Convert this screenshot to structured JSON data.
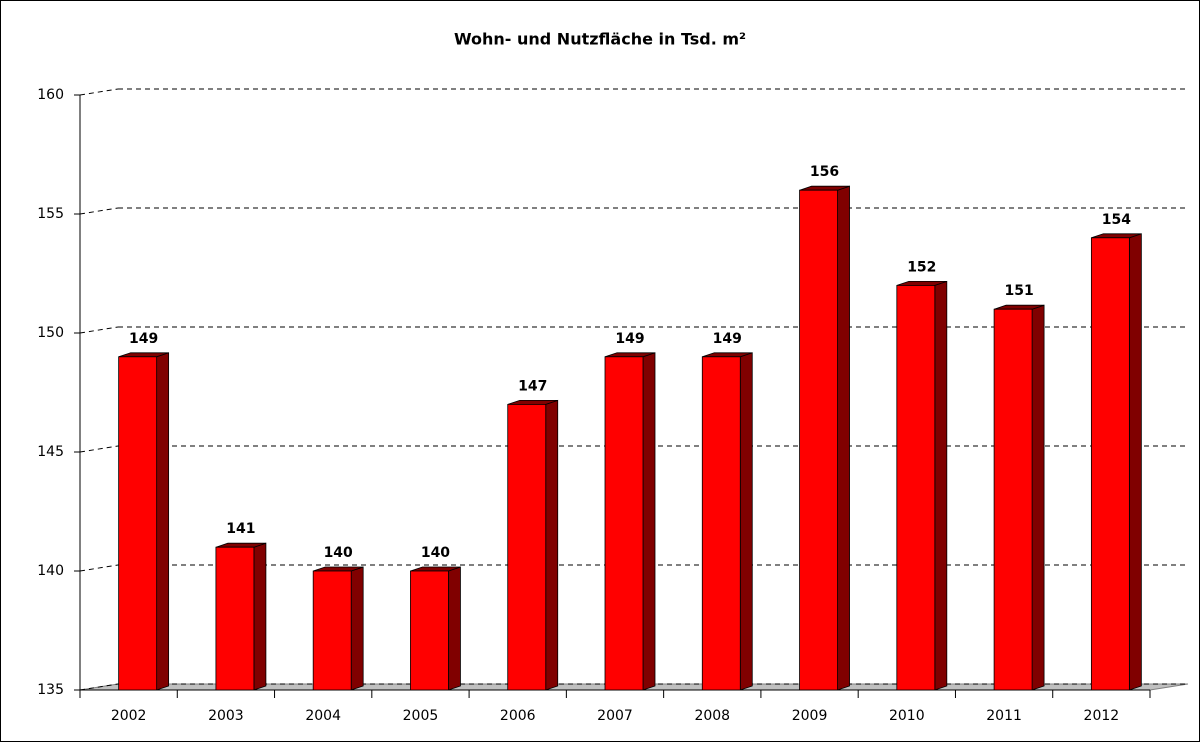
{
  "chart_data": {
    "type": "bar3d",
    "title": "Wohn- und Nutzfläche in Tsd. m²",
    "categories": [
      "2002",
      "2003",
      "2004",
      "2005",
      "2006",
      "2007",
      "2008",
      "2009",
      "2010",
      "2011",
      "2012"
    ],
    "values": [
      149,
      141,
      140,
      140,
      147,
      149,
      149,
      156,
      152,
      151,
      154
    ],
    "color": "#ff0000",
    "side_color": "#800000",
    "floor_color": "#c0c0c0",
    "ylim": [
      135,
      160
    ],
    "yticks": [
      135,
      140,
      145,
      150,
      155,
      160
    ],
    "grid": true
  }
}
